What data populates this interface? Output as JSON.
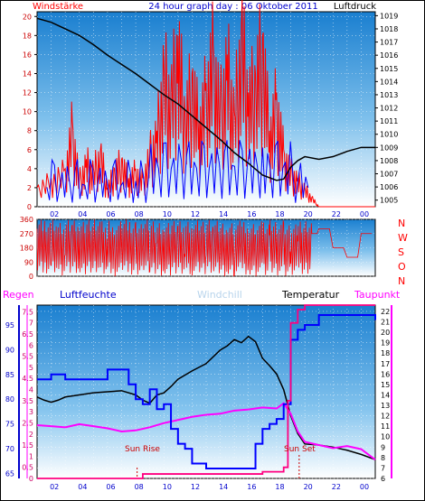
{
  "header": {
    "left_label": "Windstärke",
    "title": "24 hour graph day : 06 Oktober 2011",
    "right_label": "Luftdruck"
  },
  "bottom_labels": {
    "regen": "Regen",
    "luftfeuchte": "Luftfeuchte",
    "windchill": "Windchill",
    "temperatur": "Temperatur",
    "taupunkt": "Taupunkt"
  },
  "annotations": {
    "sun_rise": "Sun Rise",
    "sun_set": "Sun Set"
  },
  "colors": {
    "wind": "#ff0000",
    "gust": "#0000ff",
    "pressure": "#000000",
    "direction": "#ff0000",
    "regen": "#ff00ff",
    "luftfeuchte": "#0000cc",
    "windchill": "#aaccee",
    "temperatur": "#000000",
    "taupunkt": "#ff00ff",
    "rain_line": "#ff0080",
    "humidity": "#0000ff"
  },
  "chart_data": [
    {
      "type": "line",
      "x_ticks": [
        "02",
        "04",
        "06",
        "08",
        "10",
        "12",
        "14",
        "16",
        "18",
        "20",
        "22",
        "00"
      ],
      "y_left_ticks": [
        "0",
        "2",
        "4",
        "6",
        "8",
        "10",
        "12",
        "14",
        "16",
        "18",
        "20"
      ],
      "y_right_ticks": [
        "1005",
        "1006",
        "1007",
        "1008",
        "1009",
        "1010",
        "1011",
        "1012",
        "1013",
        "1014",
        "1015",
        "1016",
        "1017",
        "1018",
        "1019"
      ],
      "ylim_left": [
        0,
        20.5
      ],
      "ylim_right": [
        1004.5,
        1019.3
      ],
      "xlim": [
        0,
        24
      ],
      "series": [
        {
          "name": "Windstärke",
          "color": "#ff0000",
          "x": [
            0,
            1,
            2,
            2.5,
            3,
            3.5,
            4,
            4.5,
            5,
            5.5,
            6,
            6.5,
            7,
            7.5,
            8,
            8.5,
            9,
            9.5,
            10,
            10.5,
            11,
            11.5,
            12,
            12.5,
            13,
            13.5,
            14,
            14.5,
            15,
            15.5,
            16,
            16.5,
            17,
            17.5,
            18,
            18.5,
            19,
            19.5,
            20,
            21,
            22,
            23,
            24
          ],
          "y": [
            2,
            3,
            4,
            9,
            3,
            5,
            4,
            6,
            2,
            4,
            5,
            3,
            4,
            3,
            6,
            8,
            15,
            12,
            18,
            10,
            14,
            9,
            13,
            17,
            11,
            16,
            10,
            19,
            12,
            14,
            18,
            8,
            12,
            6,
            4,
            3,
            2,
            1,
            0,
            0,
            0,
            0,
            0
          ]
        },
        {
          "name": "Luftdruck",
          "color": "#000000",
          "x": [
            0,
            1,
            2,
            3,
            4,
            5,
            6,
            7,
            8,
            9,
            10,
            11,
            12,
            13,
            14,
            15,
            16,
            17,
            17.5,
            18,
            18.5,
            19,
            20,
            21,
            22,
            23,
            24
          ],
          "y": [
            1018.8,
            1018.5,
            1018,
            1017.5,
            1016.8,
            1016,
            1015.3,
            1014.6,
            1013.8,
            1013,
            1012.3,
            1011.4,
            1010.5,
            1009.6,
            1008.6,
            1007.8,
            1006.9,
            1006.5,
            1006.6,
            1007.5,
            1008,
            1008.3,
            1008.1,
            1008.3,
            1008.7,
            1009,
            1009
          ]
        }
      ]
    },
    {
      "type": "line",
      "y_ticks": [
        "0",
        "90",
        "180",
        "270",
        "360"
      ],
      "y_right_labels": [
        "N",
        "W",
        "S",
        "O",
        "N"
      ],
      "ylim": [
        0,
        360
      ],
      "xlim": [
        0,
        24
      ],
      "series": [
        {
          "name": "Windrichtung",
          "color": "#ff0000",
          "x": [
            0,
            0.5,
            1,
            1.5,
            2,
            2.5,
            3,
            3.5,
            4,
            4.5,
            5,
            5.5,
            6,
            6.5,
            7,
            7.5,
            8,
            8.5,
            9,
            9.5,
            10,
            10.5,
            11,
            11.5,
            12,
            12.5,
            13,
            13.5,
            14,
            14.5,
            15,
            15.5,
            16,
            16.5,
            17,
            17.5,
            18,
            18.5,
            19,
            19.5,
            20,
            21,
            22,
            23,
            24
          ],
          "y": [
            300,
            200,
            320,
            150,
            280,
            60,
            330,
            220,
            100,
            300,
            250,
            40,
            290,
            180,
            320,
            130,
            260,
            30,
            310,
            200,
            340,
            90,
            280,
            150,
            300,
            50,
            270,
            190,
            320,
            120,
            290,
            60,
            250,
            310,
            170,
            280,
            330,
            60,
            300,
            270,
            300,
            180,
            120,
            270,
            300
          ]
        }
      ]
    },
    {
      "type": "line",
      "y_left_ticks": [
        "0",
        "0.5",
        "1",
        "1.5",
        "2",
        "2.5",
        "3",
        "3.5",
        "4",
        "4.5",
        "5",
        "5.5",
        "6",
        "6.5",
        "7",
        "7.5"
      ],
      "y_humidity_ticks": [
        "65",
        "70",
        "75",
        "80",
        "85",
        "90",
        "95"
      ],
      "y_right_ticks": [
        "6",
        "7",
        "8",
        "9",
        "10",
        "11",
        "12",
        "13",
        "14",
        "15",
        "16",
        "17",
        "18",
        "19",
        "20",
        "21",
        "22"
      ],
      "ylim_regen": [
        0,
        7.8
      ],
      "ylim_humidity": [
        64,
        99
      ],
      "ylim_temp": [
        6,
        22.6
      ],
      "xlim": [
        0,
        24
      ],
      "series": [
        {
          "name": "Temperatur",
          "color": "#000000",
          "x": [
            0,
            0.5,
            1,
            1.5,
            2,
            3,
            4,
            5,
            6,
            7,
            7.5,
            8,
            8.5,
            9,
            9.5,
            10,
            11,
            12,
            13,
            13.5,
            14,
            14.5,
            15,
            15.5,
            16,
            16.5,
            17,
            17.5,
            18,
            18.5,
            19,
            20,
            21,
            22,
            23,
            24
          ],
          "y": [
            13.8,
            13.5,
            13.3,
            13.5,
            13.8,
            14,
            14.2,
            14.3,
            14.4,
            14,
            13.5,
            13.2,
            14,
            14.2,
            14.8,
            15.5,
            16.3,
            17,
            18.3,
            18.7,
            19.3,
            19,
            19.6,
            19.1,
            17.5,
            16.8,
            16,
            14.5,
            12,
            10.3,
            9.3,
            9.2,
            9,
            8.7,
            8.3,
            7.8
          ]
        },
        {
          "name": "Taupunkt",
          "color": "#ff00ff",
          "x": [
            0,
            1,
            2,
            3,
            4,
            5,
            6,
            7,
            8,
            9,
            10,
            11,
            12,
            13,
            14,
            15,
            16,
            17,
            17.5,
            18,
            18.5,
            19,
            20,
            21,
            22,
            23,
            24
          ],
          "y": [
            11.1,
            11,
            10.9,
            11.2,
            11,
            10.8,
            10.5,
            10.6,
            10.9,
            11.3,
            11.6,
            11.9,
            12.1,
            12.2,
            12.5,
            12.6,
            12.8,
            12.7,
            13.2,
            12.2,
            10.5,
            9.5,
            9.2,
            8.9,
            9.1,
            8.8,
            7.8
          ]
        },
        {
          "name": "Luftfeuchte",
          "color": "#0000ff",
          "x": [
            0,
            1,
            2,
            3,
            4,
            5,
            6,
            6.5,
            7,
            7.5,
            8,
            8.5,
            9,
            9.5,
            10,
            10.5,
            11,
            12,
            13,
            14,
            15,
            15.5,
            16,
            16.5,
            17,
            17.5,
            18,
            18.5,
            19,
            20,
            21,
            22,
            23,
            24
          ],
          "y": [
            84,
            85,
            84,
            84,
            84,
            86,
            86,
            83,
            80,
            79,
            82,
            78,
            79,
            74,
            71,
            70,
            67,
            66,
            66,
            66,
            66,
            71,
            74,
            75,
            76,
            79,
            92,
            94,
            95,
            97,
            97,
            97,
            97,
            96
          ]
        },
        {
          "name": "Regen",
          "color": "#ff0080",
          "x": [
            0,
            5.5,
            6,
            6.5,
            7,
            7.5,
            8,
            9,
            10,
            11,
            12,
            13,
            14,
            15,
            16,
            17,
            17.5,
            17.8,
            18,
            18.5,
            19,
            20,
            21,
            22,
            23,
            24
          ],
          "y": [
            0,
            0,
            0,
            0,
            0,
            0.2,
            0.2,
            0.2,
            0.2,
            0.2,
            0.2,
            0.2,
            0.2,
            0.2,
            0.3,
            0.3,
            0.5,
            3.5,
            7,
            7.6,
            7.8,
            7.8,
            7.8,
            7.8,
            7.8,
            7.8
          ]
        }
      ]
    }
  ]
}
